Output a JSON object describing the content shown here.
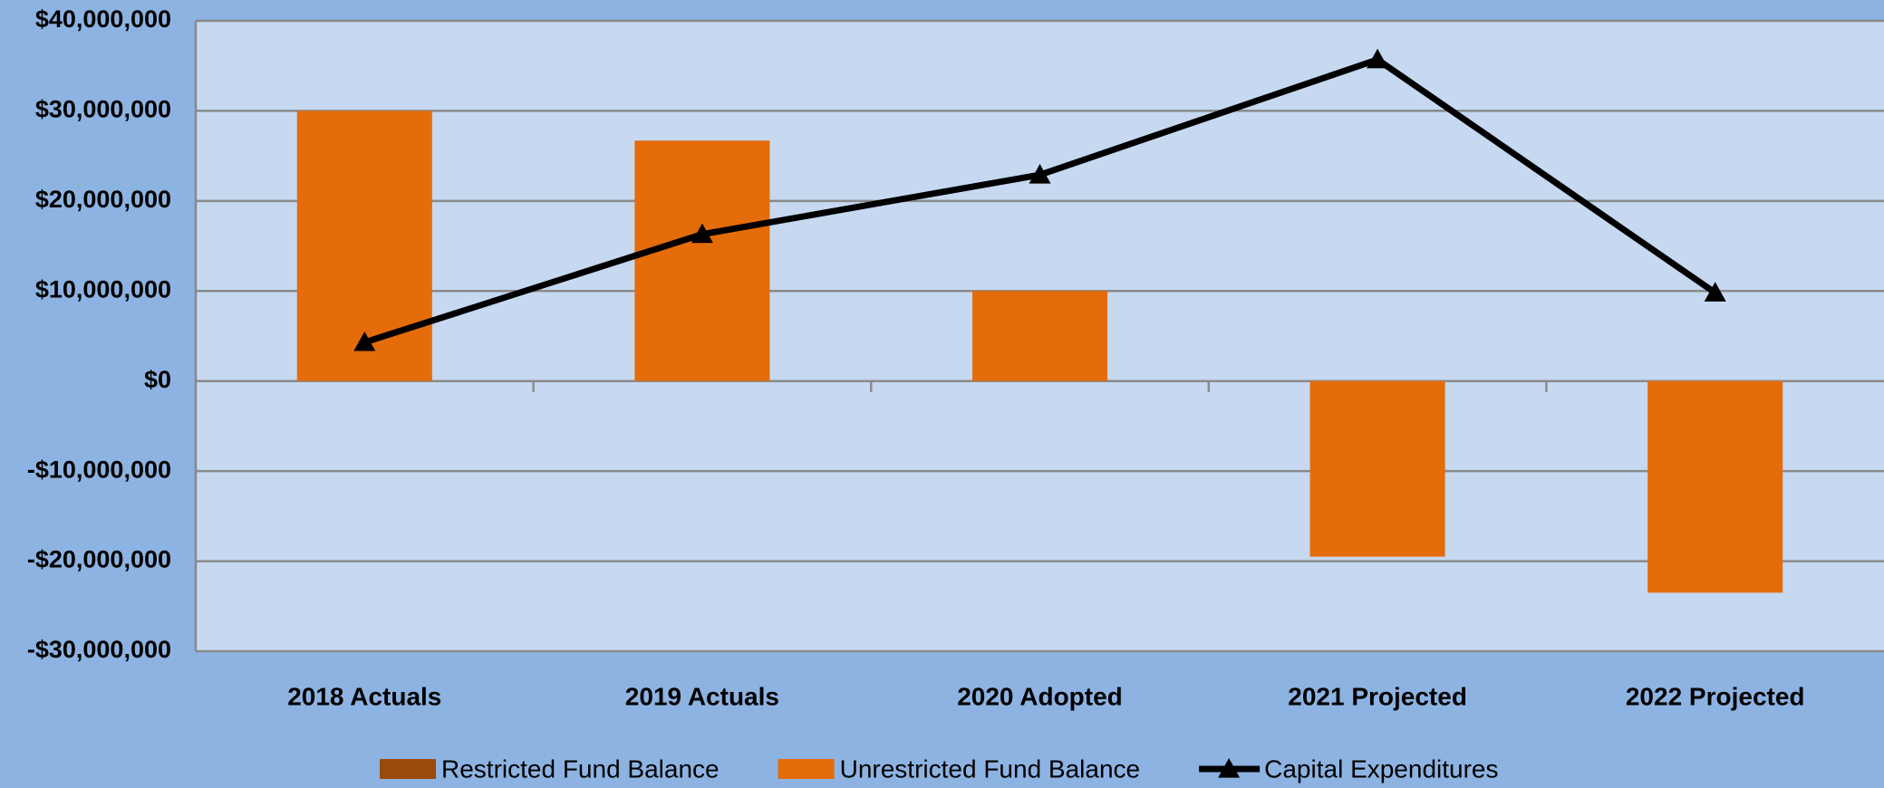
{
  "chart_data": {
    "type": "bar",
    "categories": [
      "2018 Actuals",
      "2019 Actuals",
      "2020 Adopted",
      "2021 Projected",
      "2022 Projected"
    ],
    "series": [
      {
        "name": "Restricted Fund Balance",
        "color": "#9c4a0a",
        "type": "bar",
        "values": [
          0,
          0,
          0,
          0,
          0
        ]
      },
      {
        "name": "Unrestricted Fund Balance",
        "color": "#e46c0a",
        "type": "bar",
        "values": [
          30000000,
          26700000,
          10000000,
          -19500000,
          -23500000
        ]
      },
      {
        "name": "Capital Expenditures",
        "color": "#000000",
        "type": "line",
        "values": [
          4300000,
          16300000,
          22900000,
          35700000,
          9800000
        ]
      }
    ],
    "stacked": true,
    "ylim": [
      -30000000,
      40000000
    ],
    "yticks": [
      {
        "value": -30000000,
        "label": "-$30,000,000"
      },
      {
        "value": -20000000,
        "label": "-$20,000,000"
      },
      {
        "value": -10000000,
        "label": "-$10,000,000"
      },
      {
        "value": 0,
        "label": "$0"
      },
      {
        "value": 10000000,
        "label": "$10,000,000"
      },
      {
        "value": 20000000,
        "label": "$20,000,000"
      },
      {
        "value": 30000000,
        "label": "$30,000,000"
      },
      {
        "value": 40000000,
        "label": "$40,000,000"
      }
    ],
    "grid": true,
    "legend": "bottom"
  }
}
